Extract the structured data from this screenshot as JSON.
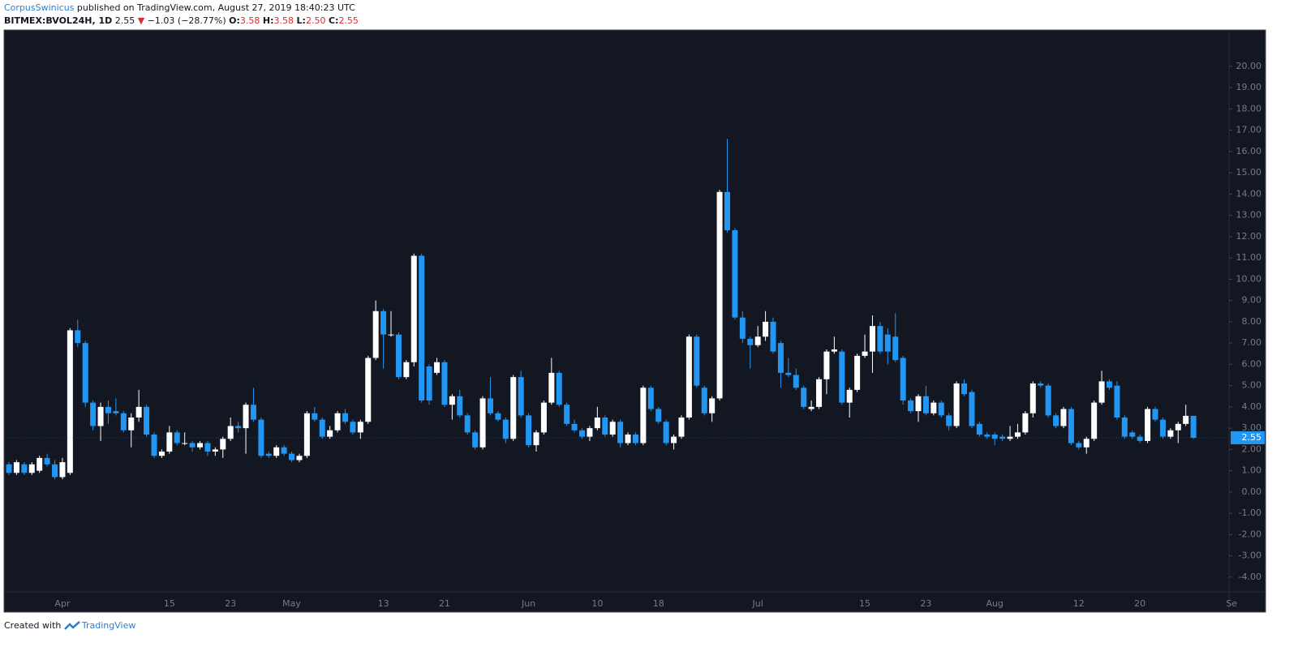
{
  "chart_data": {
    "type": "candlestick",
    "publisher": "CorpusSwinicus",
    "published_note": " published on TradingView.com, August 27, 2019 18:40:23 UTC",
    "symbol": "BITMEX:BVOL24H, 1D",
    "last": "2.55",
    "arrow": "▼",
    "change": "−1.03 (−28.77%)",
    "ohlc_labels": [
      {
        "key": "O:",
        "value": "3.58"
      },
      {
        "key": "H:",
        "value": "3.58"
      },
      {
        "key": "L:",
        "value": "2.50"
      },
      {
        "key": "C:",
        "value": "2.55"
      }
    ],
    "price_label": "2.55",
    "footer": "Created with",
    "footer_brand": "TradingView",
    "up_color": "#ffffff",
    "down_color": "#2196f3",
    "background": "#131722",
    "categories": [
      null,
      null,
      null,
      null,
      null,
      null,
      null,
      "Apr",
      null,
      null,
      null,
      null,
      null,
      null,
      null,
      null,
      null,
      null,
      null,
      null,
      null,
      "15",
      null,
      null,
      null,
      null,
      null,
      null,
      null,
      "23",
      null,
      null,
      null,
      null,
      null,
      null,
      null,
      "May",
      null,
      null,
      null,
      null,
      null,
      null,
      null,
      null,
      null,
      null,
      null,
      "13",
      null,
      null,
      null,
      null,
      null,
      null,
      null,
      "21",
      null,
      null,
      null,
      null,
      null,
      null,
      null,
      null,
      null,
      null,
      "Jun",
      null,
      null,
      null,
      null,
      null,
      null,
      null,
      null,
      "10",
      null,
      null,
      null,
      null,
      null,
      null,
      null,
      "18",
      null,
      null,
      null,
      null,
      null,
      null,
      null,
      null,
      null,
      null,
      null,
      null,
      "Jul",
      null,
      null,
      null,
      null,
      null,
      null,
      null,
      null,
      null,
      null,
      null,
      null,
      null,
      "15",
      null,
      null,
      null,
      null,
      null,
      null,
      null,
      "23",
      null,
      null,
      null,
      null,
      null,
      null,
      null,
      null,
      "Aug",
      null,
      null,
      null,
      null,
      null,
      null,
      null,
      null,
      null,
      null,
      "12",
      null,
      null,
      null,
      null,
      null,
      null,
      null,
      "20",
      null,
      null,
      null,
      null,
      null,
      null,
      null,
      null,
      null,
      null,
      null,
      "Se"
    ],
    "open": [
      1.3,
      0.9,
      1.3,
      0.9,
      1.0,
      1.6,
      1.3,
      0.7,
      0.9,
      7.6,
      7.0,
      4.2,
      3.1,
      4.0,
      3.8,
      3.7,
      2.9,
      3.5,
      4.0,
      2.7,
      1.7,
      1.9,
      2.8,
      2.3,
      2.3,
      2.1,
      2.3,
      1.9,
      2.0,
      2.5,
      3.1,
      3.0,
      4.1,
      3.4,
      1.8,
      1.7,
      2.1,
      1.8,
      1.5,
      1.7,
      3.7,
      3.4,
      2.6,
      2.9,
      3.7,
      3.3,
      2.8,
      3.3,
      6.3,
      8.5,
      7.4,
      7.4,
      5.4,
      6.1,
      11.1,
      5.9,
      5.6,
      6.1,
      4.1,
      4.5,
      3.6,
      2.8,
      2.1,
      4.4,
      3.7,
      3.4,
      2.5,
      5.4,
      3.6,
      2.2,
      2.8,
      4.2,
      5.6,
      4.1,
      3.2,
      2.9,
      2.6,
      3.0,
      3.5,
      2.7,
      3.3,
      2.3,
      2.7,
      2.3,
      4.9,
      3.9,
      3.3,
      2.3,
      2.6,
      3.5,
      7.3,
      4.9,
      3.7,
      4.4,
      14.1,
      12.3,
      8.2,
      7.2,
      6.9,
      7.3,
      8.0,
      7.0,
      5.6,
      5.5,
      4.9,
      3.9,
      4.0,
      5.3,
      6.6,
      6.6,
      4.2,
      4.8,
      6.4,
      6.6,
      7.8,
      7.4,
      7.3,
      6.3,
      4.3,
      3.8,
      4.5,
      3.7,
      4.2,
      3.6,
      3.1,
      5.1,
      4.7,
      3.2,
      2.7,
      2.7,
      2.6,
      2.5,
      2.6,
      2.8,
      3.7,
      5.1,
      5.0,
      3.6,
      3.1,
      3.9,
      2.3,
      2.1,
      2.5,
      4.2,
      5.2,
      5.0,
      3.5,
      2.8,
      2.6,
      2.4,
      3.9,
      3.4,
      2.6,
      2.9,
      3.2,
      3.58,
      null,
      null,
      null,
      null,
      null
    ],
    "high": [
      1.4,
      1.5,
      1.4,
      1.4,
      1.7,
      1.8,
      1.5,
      1.6,
      7.7,
      8.1,
      7.1,
      4.3,
      4.2,
      4.3,
      4.4,
      3.8,
      3.7,
      4.8,
      4.1,
      2.8,
      2.0,
      3.1,
      2.9,
      2.8,
      2.4,
      2.4,
      2.4,
      2.1,
      2.6,
      3.5,
      3.3,
      4.2,
      4.9,
      3.5,
      1.9,
      2.2,
      2.2,
      1.9,
      1.8,
      3.8,
      4.0,
      3.5,
      3.1,
      3.8,
      3.9,
      3.4,
      3.4,
      6.4,
      9.0,
      8.6,
      8.5,
      7.5,
      6.2,
      11.2,
      11.2,
      6.0,
      6.3,
      6.2,
      4.6,
      4.8,
      3.7,
      2.9,
      4.5,
      5.4,
      3.8,
      3.5,
      5.5,
      5.7,
      3.7,
      2.9,
      4.3,
      6.3,
      5.7,
      4.2,
      3.4,
      3.0,
      3.1,
      4.0,
      3.6,
      3.4,
      3.4,
      2.8,
      2.8,
      5.0,
      5.0,
      4.0,
      3.4,
      2.7,
      3.6,
      7.4,
      7.4,
      5.0,
      4.5,
      14.2,
      16.6,
      12.4,
      8.5,
      7.3,
      7.8,
      8.5,
      8.2,
      7.1,
      6.3,
      5.8,
      5.0,
      4.3,
      5.4,
      6.7,
      7.3,
      6.7,
      4.9,
      6.5,
      7.4,
      8.3,
      8.0,
      7.7,
      8.4,
      6.4,
      4.4,
      4.6,
      5.0,
      4.3,
      4.3,
      3.7,
      5.2,
      5.3,
      4.8,
      3.3,
      2.8,
      2.8,
      2.7,
      3.1,
      3.2,
      3.8,
      5.2,
      5.2,
      5.1,
      3.7,
      4.0,
      4.0,
      2.4,
      2.6,
      4.3,
      5.7,
      5.3,
      5.2,
      3.6,
      2.9,
      2.7,
      4.0,
      4.0,
      3.5,
      3.0,
      3.3,
      4.1,
      3.58,
      null,
      null,
      null,
      null,
      null
    ],
    "low": [
      0.8,
      0.8,
      0.8,
      0.8,
      0.9,
      1.2,
      0.6,
      0.6,
      0.8,
      6.8,
      4.0,
      2.9,
      2.4,
      3.2,
      3.6,
      2.8,
      2.1,
      3.3,
      2.6,
      1.6,
      1.6,
      1.8,
      2.2,
      2.2,
      1.9,
      2.0,
      1.7,
      1.7,
      1.6,
      2.4,
      2.8,
      1.8,
      3.3,
      1.6,
      1.6,
      1.6,
      1.7,
      1.4,
      1.4,
      1.6,
      3.3,
      2.5,
      2.5,
      2.8,
      3.2,
      2.7,
      2.5,
      3.2,
      6.2,
      5.8,
      7.3,
      5.3,
      5.3,
      5.9,
      4.2,
      4.1,
      5.5,
      4.0,
      3.4,
      3.5,
      2.7,
      2.0,
      2.0,
      3.6,
      3.3,
      2.3,
      2.4,
      3.5,
      2.1,
      1.9,
      2.7,
      4.1,
      4.0,
      3.1,
      2.8,
      2.5,
      2.4,
      2.9,
      2.6,
      2.6,
      2.1,
      2.2,
      2.2,
      2.2,
      3.8,
      3.2,
      2.2,
      2.0,
      2.5,
      3.4,
      4.9,
      3.6,
      3.3,
      4.3,
      12.2,
      8.1,
      7.0,
      5.8,
      6.8,
      7.1,
      6.5,
      4.9,
      5.4,
      4.8,
      3.9,
      3.8,
      3.9,
      4.6,
      6.5,
      4.1,
      3.5,
      4.7,
      6.3,
      5.6,
      6.5,
      6.0,
      6.1,
      4.1,
      3.7,
      3.3,
      3.6,
      3.6,
      3.5,
      2.9,
      3.0,
      4.5,
      3.0,
      2.6,
      2.5,
      2.2,
      2.4,
      2.4,
      2.5,
      2.7,
      3.5,
      4.9,
      3.5,
      3.0,
      3.0,
      2.2,
      2.0,
      1.8,
      2.4,
      4.1,
      4.8,
      3.4,
      2.5,
      2.5,
      2.3,
      2.3,
      3.3,
      2.5,
      2.5,
      2.3,
      3.1,
      2.5,
      null,
      null,
      null,
      null,
      null
    ],
    "close": [
      0.9,
      1.4,
      0.9,
      1.3,
      1.6,
      1.3,
      0.7,
      1.4,
      7.6,
      7.0,
      4.2,
      3.1,
      4.0,
      3.7,
      3.7,
      2.9,
      3.5,
      4.0,
      2.7,
      1.7,
      1.9,
      2.8,
      2.3,
      2.3,
      2.1,
      2.3,
      1.9,
      2.0,
      2.5,
      3.1,
      3.0,
      4.1,
      3.4,
      1.7,
      1.7,
      2.1,
      1.8,
      1.5,
      1.7,
      3.7,
      3.4,
      2.6,
      2.9,
      3.7,
      3.3,
      2.8,
      3.3,
      6.3,
      8.5,
      7.4,
      7.4,
      5.4,
      6.1,
      11.1,
      4.3,
      4.3,
      6.1,
      4.1,
      4.5,
      3.6,
      2.8,
      2.1,
      4.4,
      3.7,
      3.4,
      2.5,
      5.4,
      3.6,
      2.2,
      2.8,
      4.2,
      5.6,
      4.1,
      3.2,
      2.9,
      2.6,
      3.0,
      3.5,
      2.7,
      3.3,
      2.3,
      2.7,
      2.3,
      4.9,
      3.9,
      3.3,
      2.3,
      2.6,
      3.5,
      7.3,
      5.0,
      3.7,
      4.4,
      14.1,
      12.3,
      8.2,
      7.2,
      6.9,
      7.3,
      8.0,
      6.6,
      5.6,
      5.5,
      4.9,
      4.0,
      4.0,
      5.3,
      6.6,
      6.7,
      4.2,
      4.8,
      6.4,
      6.6,
      7.8,
      6.6,
      6.6,
      6.2,
      4.3,
      3.8,
      4.5,
      3.7,
      4.2,
      3.6,
      3.1,
      5.1,
      4.6,
      3.1,
      2.7,
      2.6,
      2.5,
      2.5,
      2.6,
      2.8,
      3.7,
      5.1,
      5.0,
      3.6,
      3.1,
      3.9,
      2.3,
      2.1,
      2.5,
      4.2,
      5.2,
      4.9,
      3.5,
      2.6,
      2.6,
      2.4,
      3.9,
      3.4,
      2.6,
      2.9,
      3.2,
      3.58,
      2.55,
      null,
      null,
      null,
      null,
      null
    ],
    "ylim": [
      -4.69,
      21.71
    ],
    "yticks": [
      {
        "value": -4,
        "label": "-4.00"
      },
      {
        "value": -3,
        "label": "-3.00"
      },
      {
        "value": -2,
        "label": "-2.00"
      },
      {
        "value": -1,
        "label": "-1.00"
      },
      {
        "value": 0,
        "label": "0.00"
      },
      {
        "value": 1,
        "label": "1.00"
      },
      {
        "value": 2,
        "label": "2.00"
      },
      {
        "value": 3,
        "label": "3.00"
      },
      {
        "value": 4,
        "label": "4.00"
      },
      {
        "value": 5,
        "label": "5.00"
      },
      {
        "value": 6,
        "label": "6.00"
      },
      {
        "value": 7,
        "label": "7.00"
      },
      {
        "value": 8,
        "label": "8.00"
      },
      {
        "value": 9,
        "label": "9.00"
      },
      {
        "value": 10,
        "label": "10.00"
      },
      {
        "value": 11,
        "label": "11.00"
      },
      {
        "value": 12,
        "label": "12.00"
      },
      {
        "value": 13,
        "label": "13.00"
      },
      {
        "value": 14,
        "label": "14.00"
      },
      {
        "value": 15,
        "label": "15.00"
      },
      {
        "value": 16,
        "label": "16.00"
      },
      {
        "value": 17,
        "label": "17.00"
      },
      {
        "value": 18,
        "label": "18.00"
      },
      {
        "value": 19,
        "label": "19.00"
      },
      {
        "value": 20,
        "label": "20.00"
      }
    ],
    "grid": false
  }
}
